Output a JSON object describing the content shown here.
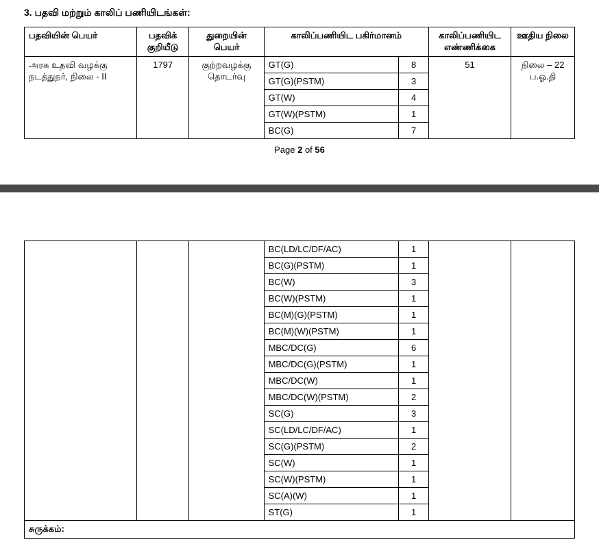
{
  "section": {
    "number": "3.",
    "title": "பதவி மற்றும் காலிப் பணியிடங்கள்:"
  },
  "headers": {
    "postName": "பதவியின் பெயர்",
    "postCode": "பதவிக் குறியீடு",
    "deptName": "துறையின் பெயர்",
    "vacDist": "காலிப்பணியிட பகிர்மானம்",
    "vacCount": "காலிப்பணியிட எண்ணிக்கை",
    "payScale": "ஊதிய நிலை"
  },
  "row": {
    "postName": "அரசு உதவி வழக்கு நடத்துநர், நிலை - II",
    "postCode": "1797",
    "deptName": "குற்றவழக்கு தொடர்வு",
    "vacCount": "51",
    "payScale": "நிலை – 22 ப.ஓ.தி"
  },
  "vacDist1": [
    {
      "label": "GT(G)",
      "count": "8"
    },
    {
      "label": "GT(G)(PSTM)",
      "count": "3"
    },
    {
      "label": "GT(W)",
      "count": "4"
    },
    {
      "label": "GT(W)(PSTM)",
      "count": "1"
    },
    {
      "label": "BC(G)",
      "count": "7"
    }
  ],
  "vacDist2": [
    {
      "label": "BC(LD/LC/DF/AC)",
      "count": "1"
    },
    {
      "label": "BC(G)(PSTM)",
      "count": "1"
    },
    {
      "label": "BC(W)",
      "count": "3"
    },
    {
      "label": "BC(W)(PSTM)",
      "count": "1"
    },
    {
      "label": "BC(M)(G)(PSTM)",
      "count": "1"
    },
    {
      "label": "BC(M)(W)(PSTM)",
      "count": "1"
    },
    {
      "label": "MBC/DC(G)",
      "count": "6"
    },
    {
      "label": "MBC/DC(G)(PSTM)",
      "count": "1"
    },
    {
      "label": "MBC/DC(W)",
      "count": "1"
    },
    {
      "label": "MBC/DC(W)(PSTM)",
      "count": "2"
    },
    {
      "label": "SC(G)",
      "count": "3"
    },
    {
      "label": "SC(LD/LC/DF/AC)",
      "count": "1"
    },
    {
      "label": "SC(G)(PSTM)",
      "count": "2"
    },
    {
      "label": "SC(W)",
      "count": "1"
    },
    {
      "label": "SC(W)(PSTM)",
      "count": "1"
    },
    {
      "label": "SC(A)(W)",
      "count": "1"
    },
    {
      "label": "ST(G)",
      "count": "1"
    }
  ],
  "pageFooter": {
    "prefix": "Page ",
    "current": "2",
    "mid": " of ",
    "total": "56"
  },
  "summaryLabel": "சுருக்கம்:"
}
